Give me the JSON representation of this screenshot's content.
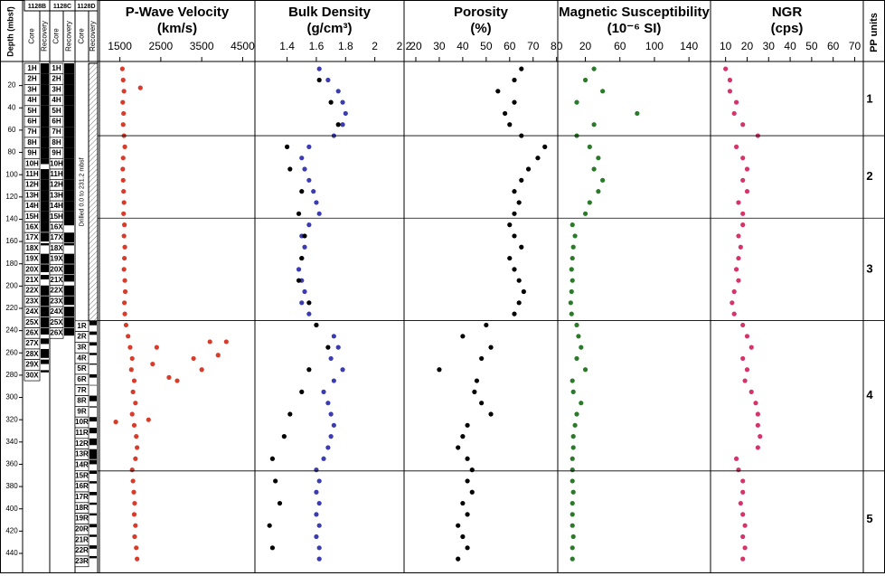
{
  "depth_axis": {
    "label": "Depth (mbsf)",
    "ylim": [
      0,
      453
    ],
    "yticks": [
      20,
      40,
      60,
      80,
      100,
      120,
      140,
      160,
      180,
      200,
      220,
      240,
      260,
      280,
      300,
      320,
      340,
      360,
      380,
      400,
      420,
      440
    ]
  },
  "holes": [
    {
      "name": "1128B",
      "core_label": "Core",
      "recovery_label": "Recovery",
      "cores": [
        "1H",
        "2H",
        "3H",
        "4H",
        "5H",
        "6H",
        "7H",
        "8H",
        "9H",
        "10H",
        "11H",
        "12H",
        "13H",
        "14H",
        "15H",
        "16X",
        "17X",
        "18X",
        "19X",
        "20X",
        "21X",
        "22X",
        "23X",
        "24X",
        "25X",
        "26X",
        "27X",
        "28X",
        "29X",
        "30X"
      ],
      "top": [
        0,
        9.5,
        19,
        28.5,
        38,
        47.5,
        57,
        66.5,
        76,
        85.5,
        95,
        104.5,
        114,
        123.5,
        133,
        142.5,
        152,
        161.5,
        171,
        180.5,
        190,
        199.5,
        209,
        218.5,
        228,
        237.5,
        247,
        256.5,
        266,
        275.5
      ],
      "recovered": [
        9.5,
        9.5,
        9.5,
        9.5,
        9.5,
        9.5,
        9.5,
        9.5,
        9.5,
        5,
        9.5,
        9.5,
        9.5,
        9.5,
        9.5,
        9,
        8,
        2,
        9,
        7,
        4,
        9,
        9,
        9,
        9,
        6,
        5,
        8,
        4,
        2
      ]
    },
    {
      "name": "1128C",
      "core_label": "Core",
      "recovery_label": "Recovery",
      "cores": [
        "1H",
        "2H",
        "3H",
        "4H",
        "5H",
        "6H",
        "7H",
        "8H",
        "9H",
        "10H",
        "11H",
        "12H",
        "13H",
        "14H",
        "15H",
        "16X",
        "17X",
        "18X",
        "19X",
        "20X",
        "21X",
        "22X",
        "23X",
        "24X",
        "25X",
        "26X"
      ],
      "top": [
        0,
        9.5,
        19,
        28.5,
        38,
        47.5,
        57,
        66.5,
        76,
        85.5,
        95,
        104.5,
        114,
        123.5,
        133,
        142.5,
        152,
        161.5,
        171,
        180.5,
        190,
        199.5,
        209,
        218.5,
        228,
        237.5
      ],
      "recovered": [
        9.5,
        9.5,
        9.5,
        9.5,
        9.5,
        9.5,
        9.5,
        9.5,
        9.5,
        9.5,
        9.5,
        9.5,
        9.5,
        9.5,
        9.5,
        3,
        9,
        2,
        9,
        9,
        6,
        9,
        8,
        9,
        9,
        7
      ]
    },
    {
      "name": "1128D",
      "core_label": "Core",
      "recovery_label": "Recovery",
      "cores": [
        "1R",
        "2R",
        "3R",
        "4R",
        "5R",
        "6R",
        "7R",
        "8R",
        "9R",
        "10R",
        "11R",
        "12R",
        "13R",
        "14R",
        "15R",
        "16R",
        "17R",
        "18R",
        "19R",
        "20R",
        "21R",
        "22R",
        "23R"
      ],
      "top": [
        231.2,
        240.8,
        250.4,
        260,
        269.6,
        279.2,
        288.8,
        298.4,
        308,
        317.6,
        327.2,
        336.8,
        346.4,
        356,
        365.6,
        375.2,
        384.8,
        394.4,
        404,
        413.6,
        423.2,
        432.8,
        442.4
      ],
      "recovered": [
        4,
        3,
        3,
        2,
        1,
        3,
        0.5,
        5,
        1,
        4,
        5,
        6,
        9,
        4,
        3,
        2,
        3,
        2,
        2,
        3,
        2,
        3,
        2
      ]
    }
  ],
  "drilled_note": "Drilled 0.0 to 231.2 mbsf",
  "chart_data": [
    {
      "type": "scatter",
      "title": "P-Wave Velocity",
      "unit": "(km/s)",
      "xlim": [
        1000,
        4800
      ],
      "xticks": [
        1500,
        2500,
        3500,
        4500
      ],
      "series": [
        {
          "color": "#d93b2b",
          "depth": [
            5,
            15,
            25,
            35,
            45,
            55,
            65,
            75,
            85,
            95,
            105,
            115,
            125,
            135,
            145,
            155,
            165,
            175,
            185,
            195,
            205,
            215,
            225,
            235,
            245,
            255,
            265,
            275,
            285,
            295,
            305,
            315,
            325,
            335,
            345,
            355,
            365,
            375,
            385,
            395,
            405,
            415,
            425,
            435,
            445
          ],
          "values": [
            1560,
            1580,
            1600,
            1570,
            1590,
            1580,
            1600,
            1620,
            1580,
            1570,
            1580,
            1590,
            1600,
            1590,
            1610,
            1600,
            1620,
            1610,
            1600,
            1620,
            1630,
            1610,
            1620,
            1650,
            1700,
            1750,
            1800,
            1780,
            1850,
            1820,
            1880,
            1800,
            1850,
            1900,
            1920,
            1880,
            1800,
            1820,
            1840,
            1860,
            1850,
            1880,
            1860,
            1900,
            1920
          ]
        },
        {
          "color": "#d93b2b",
          "depth": [
            22,
            250,
            255,
            262,
            265,
            270,
            275,
            250,
            282,
            285,
            322,
            320
          ],
          "values": [
            2000,
            3700,
            2400,
            3900,
            3300,
            2300,
            3500,
            4100,
            2700,
            2900,
            1400,
            2200
          ]
        }
      ]
    },
    {
      "type": "scatter",
      "title": "Bulk Density",
      "unit": "(g/cm³)",
      "xlim": [
        1.18,
        2.2
      ],
      "xticks": [
        1.4,
        1.6,
        1.8,
        2,
        2.2
      ],
      "series": [
        {
          "color": "#3b3bb3",
          "depth": [
            5,
            15,
            25,
            35,
            45,
            55,
            65,
            75,
            85,
            95,
            105,
            115,
            125,
            135,
            145,
            155,
            165,
            175,
            185,
            195,
            205,
            215,
            225,
            235,
            245,
            255,
            265,
            275,
            285,
            295,
            305,
            315,
            325,
            335,
            345,
            355,
            365,
            375,
            385,
            395,
            405,
            415,
            425,
            435,
            445
          ],
          "values": [
            1.62,
            1.68,
            1.75,
            1.78,
            1.8,
            1.78,
            1.72,
            1.55,
            1.5,
            1.52,
            1.55,
            1.58,
            1.6,
            1.62,
            1.55,
            1.5,
            1.52,
            1.5,
            1.48,
            1.5,
            1.52,
            1.5,
            1.55,
            1.6,
            1.72,
            1.75,
            1.7,
            1.78,
            1.72,
            1.65,
            1.68,
            1.7,
            1.72,
            1.7,
            1.68,
            1.65,
            1.6,
            1.62,
            1.6,
            1.62,
            1.6,
            1.62,
            1.6,
            1.62,
            1.62
          ]
        },
        {
          "color": "#000000",
          "depth": [
            15,
            35,
            55,
            75,
            95,
            115,
            135,
            155,
            175,
            195,
            215,
            235,
            255,
            275,
            295,
            315,
            335,
            355,
            375,
            395,
            415,
            435
          ],
          "values": [
            1.62,
            1.7,
            1.75,
            1.4,
            1.42,
            1.5,
            1.48,
            1.52,
            1.5,
            1.48,
            1.55,
            1.6,
            1.68,
            1.55,
            1.5,
            1.42,
            1.38,
            1.3,
            1.32,
            1.35,
            1.28,
            1.3
          ]
        }
      ]
    },
    {
      "type": "scatter",
      "title": "Porosity",
      "unit": "(%)",
      "xlim": [
        15,
        80.5
      ],
      "xticks": [
        20,
        30,
        40,
        50,
        60,
        70,
        80
      ],
      "series": [
        {
          "color": "#000000",
          "depth": [
            5,
            15,
            25,
            35,
            45,
            55,
            65,
            75,
            85,
            95,
            105,
            115,
            125,
            135,
            145,
            155,
            165,
            175,
            185,
            195,
            205,
            215,
            225,
            235,
            245,
            255,
            265,
            275,
            285,
            295,
            305,
            315,
            325,
            335,
            345,
            355,
            365,
            375,
            385,
            395,
            405,
            415,
            425,
            435,
            445
          ],
          "values": [
            65,
            62,
            55,
            62,
            58,
            60,
            65,
            75,
            72,
            68,
            65,
            62,
            64,
            62,
            60,
            62,
            65,
            60,
            62,
            64,
            66,
            64,
            62,
            50,
            40,
            52,
            48,
            30,
            46,
            45,
            48,
            52,
            42,
            40,
            38,
            42,
            44,
            42,
            44,
            40,
            42,
            38,
            40,
            42,
            38
          ]
        }
      ]
    },
    {
      "type": "scatter",
      "title": "Magnetic Susceptibility",
      "unit": "(10⁻⁶ SI)",
      "xlim": [
        -12,
        165
      ],
      "xticks": [
        20,
        60,
        100,
        140
      ],
      "series": [
        {
          "color": "#2a7a2a",
          "depth": [
            5,
            15,
            25,
            35,
            45,
            55,
            65,
            75,
            85,
            95,
            105,
            115,
            125,
            135,
            145,
            155,
            165,
            175,
            185,
            195,
            205,
            215,
            225,
            235,
            245,
            255,
            265,
            275,
            285,
            295,
            305,
            315,
            325,
            335,
            345,
            355,
            365,
            375,
            385,
            395,
            405,
            415,
            425,
            435,
            445
          ],
          "values": [
            30,
            20,
            40,
            10,
            80,
            30,
            10,
            25,
            35,
            30,
            40,
            35,
            25,
            20,
            5,
            8,
            6,
            5,
            4,
            5,
            4,
            3,
            4,
            10,
            12,
            15,
            10,
            20,
            5,
            6,
            15,
            10,
            8,
            6,
            6,
            5,
            5,
            5,
            6,
            5,
            5,
            5,
            6,
            5,
            5
          ]
        }
      ]
    },
    {
      "type": "scatter",
      "title": "NGR",
      "unit": "(cps)",
      "xlim": [
        3,
        74
      ],
      "xticks": [
        10,
        20,
        30,
        40,
        50,
        60,
        70
      ],
      "series": [
        {
          "color": "#d6336c",
          "depth": [
            5,
            15,
            25,
            35,
            45,
            55,
            65,
            75,
            85,
            95,
            105,
            115,
            125,
            135,
            145,
            155,
            165,
            175,
            185,
            195,
            205,
            215,
            225,
            235,
            245,
            255,
            265,
            275,
            285,
            295,
            305,
            315,
            325,
            335,
            345,
            355,
            365,
            375,
            385,
            395,
            405,
            415,
            425,
            435,
            445
          ],
          "values": [
            10,
            12,
            12,
            15,
            14,
            18,
            25,
            15,
            18,
            20,
            18,
            20,
            16,
            18,
            18,
            16,
            17,
            16,
            15,
            16,
            14,
            13,
            14,
            18,
            20,
            22,
            18,
            20,
            19,
            22,
            24,
            25,
            25,
            26,
            25,
            15,
            16,
            18,
            18,
            17,
            18,
            19,
            18,
            19,
            18
          ]
        }
      ]
    }
  ],
  "pp_units": {
    "label": "PP units",
    "units": [
      "1",
      "2",
      "3",
      "4",
      "5"
    ],
    "boundaries": [
      65,
      139,
      231,
      366
    ]
  }
}
